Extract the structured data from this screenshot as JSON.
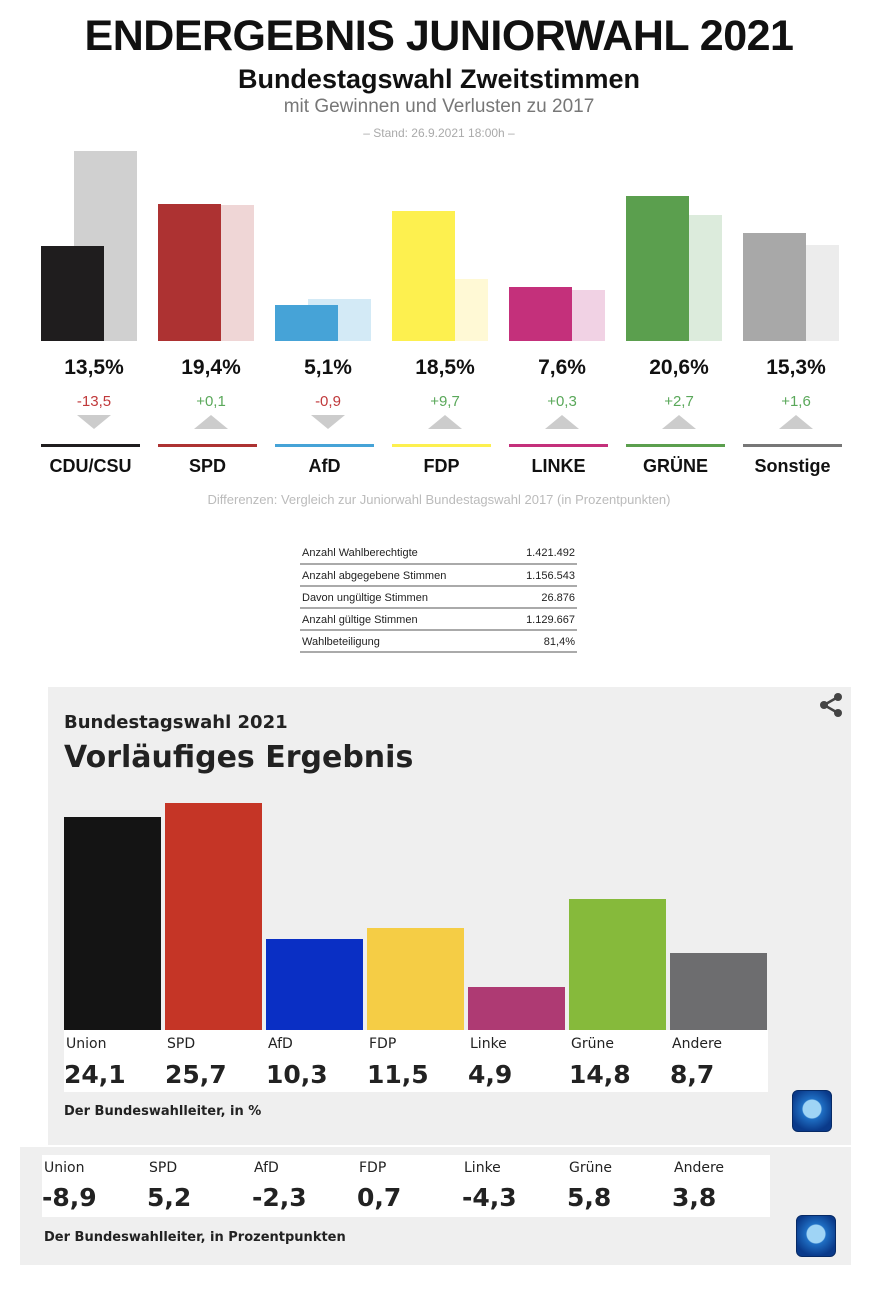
{
  "header": {
    "title": "ENDERGEBNIS JUNIORWAHL 2021",
    "subtitle": "Bundestagswahl Zweitstimmen",
    "subsubtitle": "mit Gewinnen und Verlusten zu 2017",
    "stand": "– Stand: 26.9.2021 18:00h –"
  },
  "chart_data": [
    {
      "type": "bar",
      "title": "ENDERGEBNIS JUNIORWAHL 2021",
      "categories": [
        "CDU/CSU",
        "SPD",
        "AfD",
        "FDP",
        "LINKE",
        "GRÜNE",
        "Sonstige"
      ],
      "series": [
        {
          "name": "2021",
          "values": [
            13.5,
            19.4,
            5.1,
            18.5,
            7.6,
            20.6,
            15.3
          ],
          "labels": [
            "13,5%",
            "19,4%",
            "5,1%",
            "18,5%",
            "7,6%",
            "20,6%",
            "15,3%"
          ]
        },
        {
          "name": "2017",
          "values": [
            27.0,
            19.3,
            6.0,
            8.8,
            7.3,
            17.9,
            13.7
          ]
        }
      ],
      "diffs": [
        -13.5,
        0.1,
        -0.9,
        9.7,
        0.3,
        2.7,
        1.6
      ],
      "diff_labels": [
        "-13,5",
        "+0,1",
        "-0,9",
        "+9,7",
        "+0,3",
        "+2,7",
        "+1,6"
      ],
      "colors": [
        "#1f1d1e",
        "#ad3232",
        "#46a3d7",
        "#fdf04f",
        "#c4307b",
        "#5b9f4e",
        "#a8a8a8"
      ],
      "light_colors": [
        "#d0d0d0",
        "#efd6d6",
        "#d3eaf6",
        "#fff9d5",
        "#f1d2e4",
        "#dcebdc",
        "#ececec"
      ],
      "note": "Differenzen: Vergleich zur Juniorwahl Bundestagswahl 2017 (in Prozentpunkten)",
      "ylim": [
        0,
        28
      ]
    },
    {
      "type": "bar",
      "title": "Vorläufiges Ergebnis",
      "subtitle": "Bundestagswahl 2021",
      "categories": [
        "Union",
        "SPD",
        "AfD",
        "FDP",
        "Linke",
        "Grüne",
        "Andere"
      ],
      "values": [
        24.1,
        25.7,
        10.3,
        11.5,
        4.9,
        14.8,
        8.7
      ],
      "labels": [
        "24,1",
        "25,7",
        "10,3",
        "11,5",
        "4,9",
        "14,8",
        "8,7"
      ],
      "colors": [
        "#141414",
        "#c53526",
        "#0a2fc4",
        "#f5cd45",
        "#ae3a73",
        "#86ba3b",
        "#6d6d6f"
      ],
      "source": "Der Bundeswahlleiter, in %",
      "ylim": [
        0,
        26
      ]
    },
    {
      "type": "table",
      "categories": [
        "Union",
        "SPD",
        "AfD",
        "FDP",
        "Linke",
        "Grüne",
        "Andere"
      ],
      "values": [
        -8.9,
        5.2,
        -2.3,
        0.7,
        -4.3,
        5.8,
        3.8
      ],
      "labels": [
        "-8,9",
        "5,2",
        "-2,3",
        "0,7",
        "-4,3",
        "5,8",
        "3,8"
      ],
      "source": "Der Bundeswahlleiter, in Prozentpunkten"
    }
  ],
  "stats": [
    [
      "Anzahl Wahlberechtigte",
      "1.421.492"
    ],
    [
      "Anzahl abgegebene Stimmen",
      "1.156.543"
    ],
    [
      "Davon ungültige Stimmen",
      "26.876"
    ],
    [
      "Anzahl gültige Stimmen",
      "1.129.667"
    ],
    [
      "Wahlbeteiligung",
      "81,4%"
    ]
  ],
  "icons": {
    "share": "share-icon",
    "logo": "tagesschau-logo"
  }
}
